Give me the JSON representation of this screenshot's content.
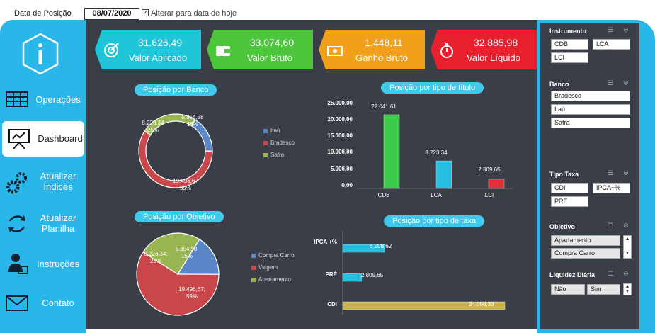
{
  "topbar": {
    "date_label": "Data de Posição",
    "date_value": "08/07/2020",
    "checkbox_checked": "✓",
    "checkbox_label": "Alterar para data de hoje"
  },
  "sidebar": {
    "items": [
      {
        "label": "Operações",
        "icon": "table-icon"
      },
      {
        "label": "Dashboard",
        "icon": "presentation-icon",
        "active": true
      },
      {
        "label": "Atualizar Índices",
        "icon": "gears-icon"
      },
      {
        "label": "Atualizar Planilha",
        "icon": "refresh-icon"
      },
      {
        "label": "Instruções",
        "icon": "user-board-icon"
      },
      {
        "label": "Contato",
        "icon": "envelope-icon"
      }
    ]
  },
  "kpis": [
    {
      "value": "31.626,49",
      "caption": "Valor Aplicado",
      "color": "#1fc5d8",
      "icon": "target-icon"
    },
    {
      "value": "33.074,60",
      "caption": "Valor Bruto",
      "color": "#4cc63b",
      "icon": "wallet-icon"
    },
    {
      "value": "1.448,11",
      "caption": "Ganho Bruto",
      "color": "#f0a01a",
      "icon": "money-icon"
    },
    {
      "value": "32.885,98",
      "caption": "Valor Líquido",
      "color": "#e8202e",
      "icon": "stopwatch-icon"
    }
  ],
  "titles": {
    "banco": "Posição por Banco",
    "titulo": "Posição por tipo de título",
    "objetivo": "Posição por Objetivo",
    "taxa": "Posição por tipo de taxa"
  },
  "chart_data": [
    {
      "type": "pie",
      "title": "Posição por Banco",
      "categories": [
        "Itaú",
        "Bradesco",
        "Safra"
      ],
      "values": [
        5354.58,
        19496.67,
        8223.34
      ],
      "value_labels": [
        "5.354,58",
        "19.496,67",
        "8.223,34"
      ],
      "percent_labels": [
        "16%",
        "59%",
        "25%"
      ],
      "colors": [
        "#5b86c7",
        "#c9474a",
        "#98b552"
      ],
      "legend": "right"
    },
    {
      "type": "bar",
      "title": "Posição por tipo de título",
      "categories": [
        "CDB",
        "LCA",
        "LCI"
      ],
      "values": [
        22041.61,
        8223.34,
        2809.65
      ],
      "value_labels": [
        "22.041,61",
        "8.223,34",
        "2.809,65"
      ],
      "colors": [
        "#3ecb4a",
        "#27bfe0",
        "#e0303a"
      ],
      "ylim": [
        0,
        25000
      ],
      "yticks": [
        "0,00",
        "5.000,00",
        "10.000,00",
        "15.000,00",
        "20.000,00",
        "25.000,00"
      ]
    },
    {
      "type": "pie",
      "title": "Posição por Objetivo",
      "categories": [
        "Compra Carro",
        "Viagem",
        "Apartamento"
      ],
      "values": [
        5354.58,
        19496.67,
        8223.34
      ],
      "value_labels": [
        "5.354,58;",
        "19.496,67;",
        "8.223,34;"
      ],
      "percent_labels": [
        "16%",
        "59%",
        "25%"
      ],
      "colors": [
        "#5b86c7",
        "#c9474a",
        "#98b552"
      ],
      "legend": "right"
    },
    {
      "type": "bar",
      "orientation": "horizontal",
      "title": "Posição por tipo de taxa",
      "categories": [
        "IPCA +%",
        "PRÉ",
        "CDI"
      ],
      "values": [
        6208.62,
        2809.65,
        24056.33
      ],
      "value_labels": [
        "6.208,62",
        "2.809,65",
        "24.056,33"
      ],
      "colors": [
        "#27bfe0",
        "#27bfe0",
        "#c9b24a"
      ]
    }
  ],
  "filters": {
    "instrumento": {
      "label": "Instrumento",
      "options": [
        "CDB",
        "LCA",
        "LCI"
      ]
    },
    "banco": {
      "label": "Banco",
      "options": [
        "Bradesco",
        "Itaú",
        "Safra"
      ]
    },
    "tipo_taxa": {
      "label": "Tipo Taxa",
      "options": [
        "CDI",
        "IPCA+%",
        "PRÉ"
      ]
    },
    "objetivo": {
      "label": "Objetivo",
      "options": [
        "Apartamento",
        "Compra Carro"
      ]
    },
    "liquidez": {
      "label": "Liquidez Diária",
      "options": [
        "Não",
        "Sim"
      ]
    }
  }
}
